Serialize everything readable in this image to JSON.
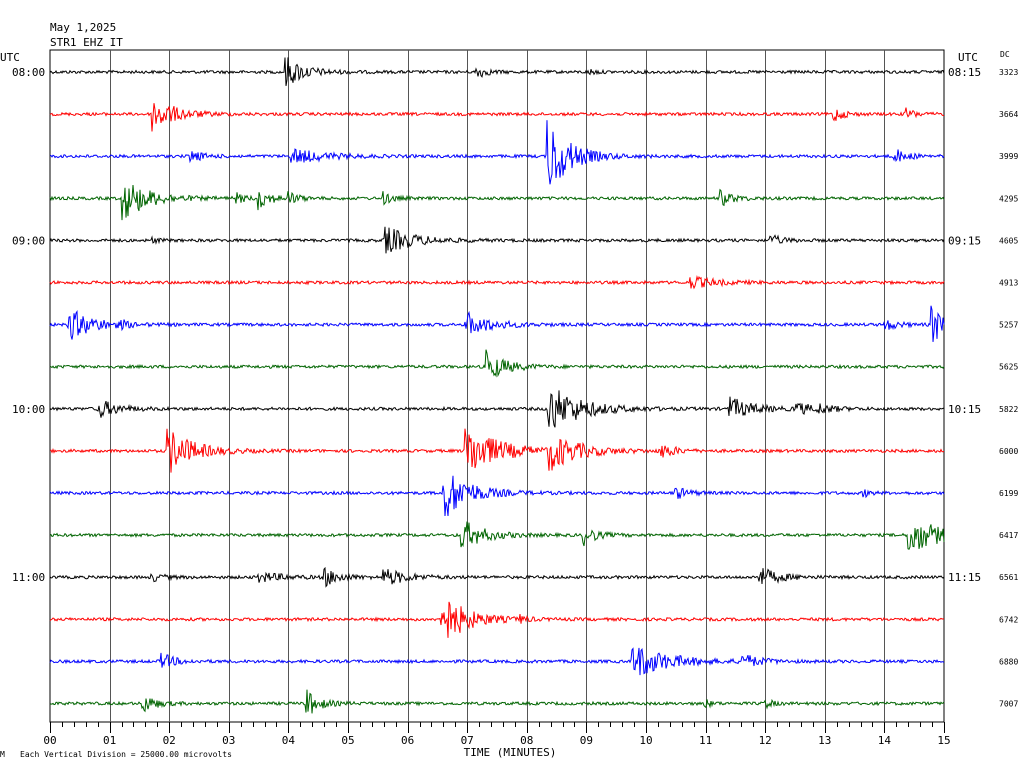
{
  "header": {
    "date": "May 1,2025",
    "station": "STR1 EHZ IT"
  },
  "chart_data": {
    "type": "line",
    "title": "May 1,2025",
    "subtitle": "STR1 EHZ IT",
    "left_axis_label": "UTC",
    "right_axis_label": "UTC",
    "dc_label": "DC",
    "xlabel": "TIME (MINUTES)",
    "xlim": [
      0,
      15
    ],
    "x_ticks": [
      "00",
      "01",
      "02",
      "03",
      "04",
      "05",
      "06",
      "07",
      "08",
      "09",
      "10",
      "11",
      "12",
      "13",
      "14",
      "15"
    ],
    "left_time_labels": [
      {
        "row": 0,
        "text": "08:00"
      },
      {
        "row": 4,
        "text": "09:00"
      },
      {
        "row": 8,
        "text": "10:00"
      },
      {
        "row": 12,
        "text": "11:00"
      }
    ],
    "right_time_labels": [
      {
        "row": 0,
        "text": "08:15"
      },
      {
        "row": 4,
        "text": "09:15"
      },
      {
        "row": 8,
        "text": "10:15"
      },
      {
        "row": 12,
        "text": "11:15"
      }
    ],
    "footnote": "Each Vertical Division = 25000.00 microvolts",
    "colors": [
      "#000000",
      "#ff0000",
      "#0000ff",
      "#006400"
    ],
    "traces": [
      {
        "start": "08:00",
        "dc": "3323",
        "noise": 1.5,
        "events": [
          {
            "x": 3.95,
            "amp": 16,
            "dur": 0.3
          },
          {
            "x": 7.15,
            "amp": 7,
            "dur": 0.15
          },
          {
            "x": 9.05,
            "amp": 3,
            "dur": 0.1
          }
        ]
      },
      {
        "start": "08:15",
        "dc": "3664",
        "noise": 1.5,
        "events": [
          {
            "x": 1.72,
            "amp": 18,
            "dur": 0.35
          },
          {
            "x": 13.15,
            "amp": 8,
            "dur": 0.15
          },
          {
            "x": 14.35,
            "amp": 6,
            "dur": 0.15
          }
        ]
      },
      {
        "start": "08:30",
        "dc": "3999",
        "noise": 1.5,
        "events": [
          {
            "x": 2.35,
            "amp": 6,
            "dur": 0.2
          },
          {
            "x": 4.05,
            "amp": 8,
            "dur": 0.5
          },
          {
            "x": 8.35,
            "amp": 40,
            "dur": 0.35
          },
          {
            "x": 14.15,
            "amp": 8,
            "dur": 0.2
          }
        ]
      },
      {
        "start": "08:45",
        "dc": "4295",
        "noise": 1.5,
        "events": [
          {
            "x": 1.22,
            "amp": 22,
            "dur": 0.4
          },
          {
            "x": 3.1,
            "amp": 6,
            "dur": 0.15
          },
          {
            "x": 3.5,
            "amp": 10,
            "dur": 0.2
          },
          {
            "x": 4.0,
            "amp": 6,
            "dur": 0.15
          },
          {
            "x": 5.6,
            "amp": 6,
            "dur": 0.15
          },
          {
            "x": 11.25,
            "amp": 8,
            "dur": 0.2
          }
        ]
      },
      {
        "start": "09:00",
        "dc": "4605",
        "noise": 1.5,
        "events": [
          {
            "x": 5.62,
            "amp": 14,
            "dur": 0.45
          },
          {
            "x": 12.1,
            "amp": 5,
            "dur": 0.2
          },
          {
            "x": 1.7,
            "amp": 3,
            "dur": 0.1
          }
        ]
      },
      {
        "start": "09:15",
        "dc": "4913",
        "noise": 1.5,
        "events": [
          {
            "x": 10.75,
            "amp": 6,
            "dur": 0.4
          }
        ]
      },
      {
        "start": "09:30",
        "dc": "5257",
        "noise": 1.5,
        "events": [
          {
            "x": 0.32,
            "amp": 16,
            "dur": 0.4
          },
          {
            "x": 6.98,
            "amp": 12,
            "dur": 0.4
          },
          {
            "x": 14.0,
            "amp": 6,
            "dur": 0.2
          },
          {
            "x": 14.8,
            "amp": 20,
            "dur": 0.2
          },
          {
            "x": 1.2,
            "amp": 3,
            "dur": 0.1
          }
        ]
      },
      {
        "start": "09:45",
        "dc": "5625",
        "noise": 1.5,
        "events": [
          {
            "x": 7.32,
            "amp": 16,
            "dur": 0.3
          }
        ]
      },
      {
        "start": "10:00",
        "dc": "5822",
        "noise": 1.5,
        "events": [
          {
            "x": 0.8,
            "amp": 10,
            "dur": 0.3
          },
          {
            "x": 8.35,
            "amp": 26,
            "dur": 0.5
          },
          {
            "x": 11.4,
            "amp": 12,
            "dur": 0.35
          },
          {
            "x": 12.5,
            "amp": 6,
            "dur": 0.3
          },
          {
            "x": 12.9,
            "amp": 4,
            "dur": 0.2
          }
        ]
      },
      {
        "start": "10:15",
        "dc": "6000",
        "noise": 1.5,
        "events": [
          {
            "x": 1.97,
            "amp": 24,
            "dur": 0.4
          },
          {
            "x": 6.97,
            "amp": 28,
            "dur": 0.5
          },
          {
            "x": 8.35,
            "amp": 20,
            "dur": 0.45
          },
          {
            "x": 10.25,
            "amp": 8,
            "dur": 0.2
          }
        ]
      },
      {
        "start": "10:30",
        "dc": "6199",
        "noise": 1.5,
        "events": [
          {
            "x": 6.6,
            "amp": 28,
            "dur": 0.4
          },
          {
            "x": 10.5,
            "amp": 6,
            "dur": 0.2
          },
          {
            "x": 13.65,
            "amp": 4,
            "dur": 0.1
          }
        ]
      },
      {
        "start": "10:45",
        "dc": "6417",
        "noise": 1.5,
        "events": [
          {
            "x": 6.9,
            "amp": 16,
            "dur": 0.35
          },
          {
            "x": 8.95,
            "amp": 10,
            "dur": 0.2
          },
          {
            "x": 14.4,
            "amp": 20,
            "dur": 0.5
          }
        ]
      },
      {
        "start": "11:00",
        "dc": "6561",
        "noise": 1.5,
        "events": [
          {
            "x": 1.7,
            "amp": 4,
            "dur": 0.2
          },
          {
            "x": 3.5,
            "amp": 5,
            "dur": 0.4
          },
          {
            "x": 4.6,
            "amp": 9,
            "dur": 0.25
          },
          {
            "x": 5.6,
            "amp": 9,
            "dur": 0.35
          },
          {
            "x": 11.9,
            "amp": 10,
            "dur": 0.3
          }
        ]
      },
      {
        "start": "11:15",
        "dc": "6742",
        "noise": 1.5,
        "events": [
          {
            "x": 6.55,
            "amp": 28,
            "dur": 0.4
          },
          {
            "x": 7.9,
            "amp": 3,
            "dur": 0.1
          }
        ]
      },
      {
        "start": "11:30",
        "dc": "6880",
        "noise": 1.5,
        "events": [
          {
            "x": 1.88,
            "amp": 8,
            "dur": 0.2
          },
          {
            "x": 9.78,
            "amp": 18,
            "dur": 0.55
          },
          {
            "x": 11.6,
            "amp": 8,
            "dur": 0.25
          }
        ]
      },
      {
        "start": "11:45",
        "dc": "7007",
        "noise": 1.5,
        "events": [
          {
            "x": 1.55,
            "amp": 10,
            "dur": 0.2
          },
          {
            "x": 4.3,
            "amp": 14,
            "dur": 0.2
          },
          {
            "x": 10.95,
            "amp": 6,
            "dur": 0.1
          },
          {
            "x": 12.0,
            "amp": 6,
            "dur": 0.1
          }
        ]
      }
    ]
  }
}
